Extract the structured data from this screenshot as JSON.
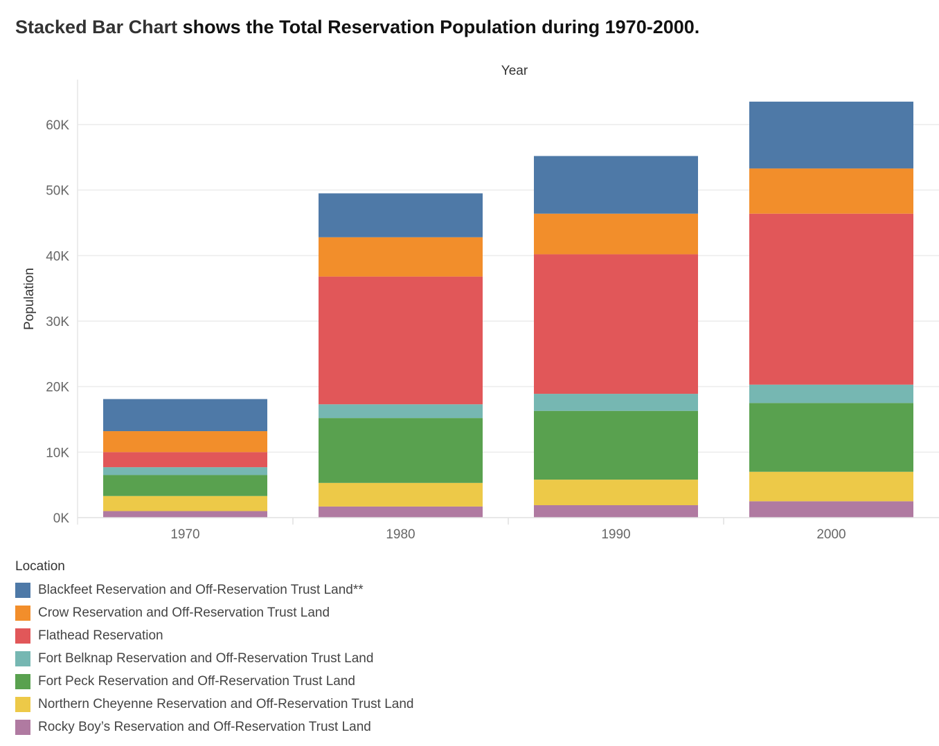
{
  "title": {
    "part1": "Stacked Bar Chart",
    "part2": " shows the Total Reservation Population during 1970-2000."
  },
  "chart_data": {
    "type": "bar",
    "stacked": true,
    "xlabel": "Year",
    "ylabel": "Population",
    "categories": [
      "1970",
      "1980",
      "1990",
      "2000"
    ],
    "ylim": [
      0,
      66000
    ],
    "yticks": [
      0,
      10000,
      20000,
      30000,
      40000,
      50000,
      60000
    ],
    "ytick_labels": [
      "0K",
      "10K",
      "20K",
      "30K",
      "40K",
      "50K",
      "60K"
    ],
    "grid": true,
    "legend_position": "bottom-left",
    "series": [
      {
        "name": "Rocky Boy’s Reservation and Off-Reservation Trust Land",
        "color": "#b07aa1",
        "values": [
          1000,
          1700,
          1900,
          2500
        ]
      },
      {
        "name": "Northern Cheyenne Reservation and Off-Reservation Trust Land",
        "color": "#edc948",
        "values": [
          2300,
          3600,
          3900,
          4500
        ]
      },
      {
        "name": "Fort Peck Reservation and Off-Reservation Trust Land",
        "color": "#59a14f",
        "values": [
          3200,
          9900,
          10500,
          10500
        ]
      },
      {
        "name": "Fort Belknap Reservation and Off-Reservation Trust Land",
        "color": "#76b7b2",
        "values": [
          1200,
          2100,
          2600,
          2800
        ]
      },
      {
        "name": "Flathead Reservation",
        "color": "#e15759",
        "values": [
          2300,
          19500,
          21300,
          26100
        ]
      },
      {
        "name": "Crow Reservation and Off-Reservation Trust Land",
        "color": "#f28e2b",
        "values": [
          3200,
          6000,
          6200,
          6900
        ]
      },
      {
        "name": "Blackfeet Reservation and Off-Reservation Trust Land**",
        "color": "#4e79a7",
        "values": [
          4900,
          6700,
          8800,
          10200
        ]
      }
    ]
  },
  "legend": {
    "title": "Location",
    "items": [
      {
        "label": "Blackfeet Reservation and Off-Reservation Trust Land**",
        "color": "#4e79a7"
      },
      {
        "label": "Crow Reservation and Off-Reservation Trust Land",
        "color": "#f28e2b"
      },
      {
        "label": "Flathead Reservation",
        "color": "#e15759"
      },
      {
        "label": "Fort Belknap Reservation and Off-Reservation Trust Land",
        "color": "#76b7b2"
      },
      {
        "label": "Fort Peck Reservation and Off-Reservation Trust Land",
        "color": "#59a14f"
      },
      {
        "label": "Northern Cheyenne Reservation and Off-Reservation Trust Land",
        "color": "#edc948"
      },
      {
        "label": "Rocky Boy’s Reservation and Off-Reservation Trust Land",
        "color": "#b07aa1"
      }
    ]
  }
}
